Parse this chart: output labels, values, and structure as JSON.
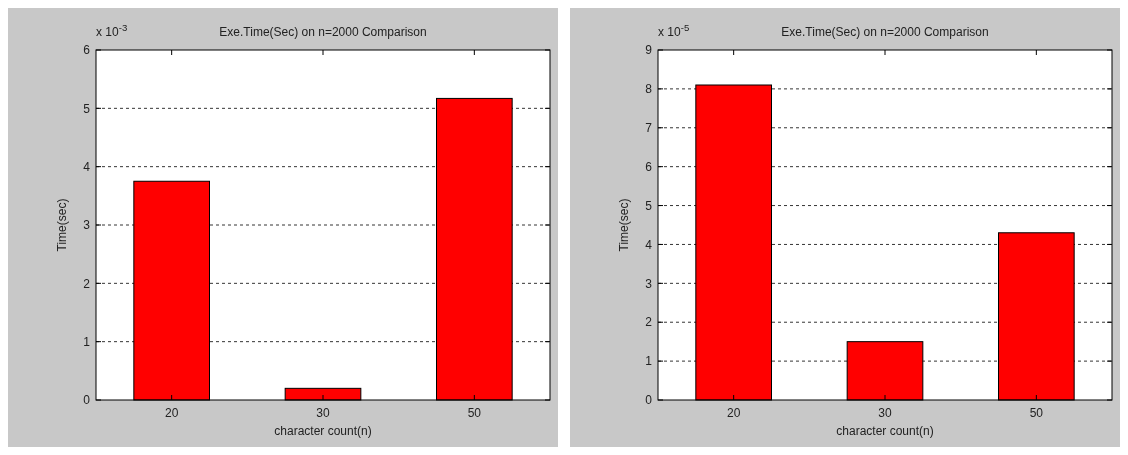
{
  "chart_data": [
    {
      "type": "bar",
      "title": "Exe.Time(Sec) on n=2000 Comparison",
      "xlabel": "character count(n)",
      "ylabel": "Time(sec)",
      "annotations": [
        "x 10$^{-3}$"
      ],
      "categories": [
        "20",
        "30",
        "50"
      ],
      "values": [
        3.75,
        0.2,
        5.17
      ],
      "color": "#ff0000",
      "ylim": [
        0,
        6
      ],
      "yticks": [
        0,
        1,
        2,
        3,
        4,
        5,
        6
      ],
      "grid": "y"
    },
    {
      "type": "bar",
      "title": "Exe.Time(Sec) on n=2000 Comparison",
      "xlabel": "character count(n)",
      "ylabel": "Time(sec)",
      "annotations": [
        "x 10$^{-5}$"
      ],
      "categories": [
        "20",
        "30",
        "50"
      ],
      "values": [
        8.1,
        1.5,
        4.3
      ],
      "color": "#ff0000",
      "ylim": [
        0,
        9
      ],
      "yticks": [
        0,
        1,
        2,
        3,
        4,
        5,
        6,
        7,
        8,
        9
      ],
      "grid": "y"
    }
  ]
}
